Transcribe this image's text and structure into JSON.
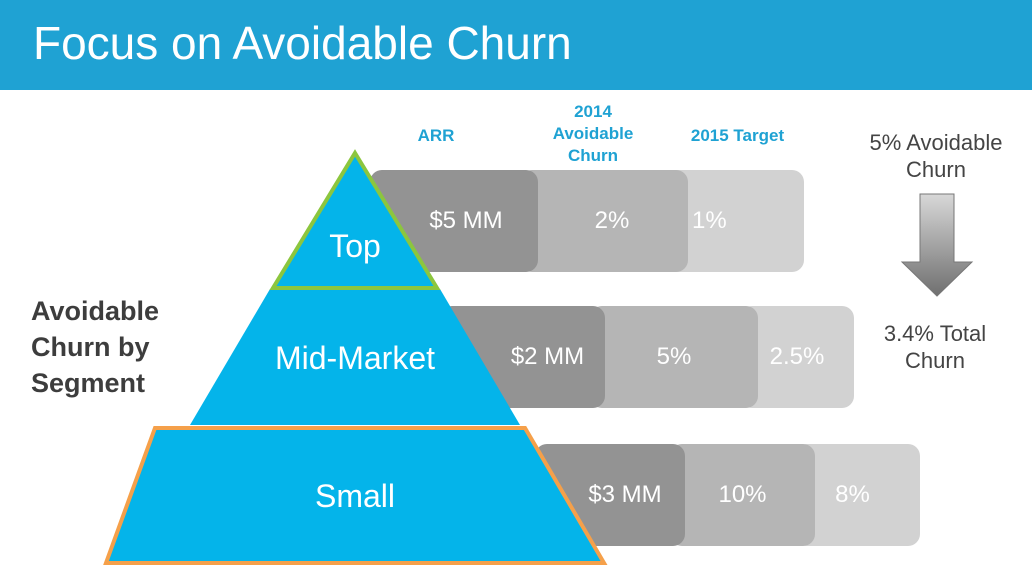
{
  "title": "Focus on Avoidable Churn",
  "left_label": [
    "Avoidable",
    "Churn by",
    "Segment"
  ],
  "columns": {
    "arr": "ARR",
    "churn_2014": [
      "2014",
      "Avoidable",
      "Churn"
    ],
    "target_2015": "2015 Target"
  },
  "segments": [
    {
      "name": "Top",
      "arr": "$5 MM",
      "churn_2014": "2%",
      "target_2015": "1%"
    },
    {
      "name": "Mid-Market",
      "arr": "$2 MM",
      "churn_2014": "5%",
      "target_2015": "2.5%"
    },
    {
      "name": "Small",
      "arr": "$3 MM",
      "churn_2014": "10%",
      "target_2015": "8%"
    }
  ],
  "side": {
    "top_text": [
      "5% Avoidable",
      "Churn"
    ],
    "bottom_text": [
      "3.4% Total",
      "Churn"
    ]
  },
  "colors": {
    "header": "#1fa2d3",
    "pyramid": "#04b4ea",
    "top_outline": "#8cc63e",
    "small_outline": "#f5a04a",
    "arr_cell": "#939393",
    "churn_cell": "#b5b5b5",
    "target_cell": "#d2d2d2"
  }
}
